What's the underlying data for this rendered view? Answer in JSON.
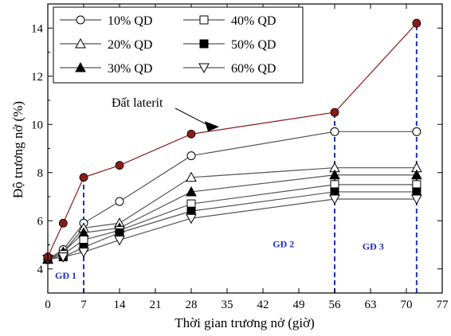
{
  "chart_data": {
    "type": "line",
    "xlabel": "Thời gian trương nở (giờ)",
    "ylabel": "Độ trương nở (%)",
    "xlim": [
      0,
      77
    ],
    "ylim": [
      3,
      15
    ],
    "x_ticks": [
      0,
      7,
      14,
      21,
      28,
      35,
      42,
      49,
      56,
      63,
      70,
      77
    ],
    "y_ticks": [
      4,
      6,
      8,
      10,
      12,
      14
    ],
    "legend_position": "top-left",
    "series": [
      {
        "name": "10% QD",
        "marker": "circle-open",
        "color": "#555555",
        "x": [
          0,
          3,
          7,
          14,
          28,
          56,
          72
        ],
        "y": [
          4.4,
          4.8,
          5.9,
          6.8,
          8.7,
          9.7,
          9.7
        ]
      },
      {
        "name": "20% QD",
        "marker": "triangle-up-open",
        "color": "#555555",
        "x": [
          0,
          3,
          7,
          14,
          28,
          56,
          72
        ],
        "y": [
          4.4,
          4.7,
          5.7,
          5.9,
          7.8,
          8.2,
          8.2
        ]
      },
      {
        "name": "30% QD",
        "marker": "triangle-up-filled",
        "color": "#555555",
        "x": [
          0,
          3,
          7,
          14,
          28,
          56,
          72
        ],
        "y": [
          4.4,
          4.7,
          5.5,
          5.7,
          7.2,
          7.9,
          7.9
        ]
      },
      {
        "name": "40% QD",
        "marker": "square-open",
        "color": "#555555",
        "x": [
          0,
          3,
          7,
          14,
          28,
          56,
          72
        ],
        "y": [
          4.4,
          4.6,
          5.2,
          5.6,
          6.7,
          7.5,
          7.5
        ]
      },
      {
        "name": "50% QD",
        "marker": "square-filled",
        "color": "#555555",
        "x": [
          0,
          3,
          7,
          14,
          28,
          56,
          72
        ],
        "y": [
          4.4,
          4.5,
          4.9,
          5.5,
          6.4,
          7.2,
          7.2
        ]
      },
      {
        "name": "60% QD",
        "marker": "triangle-down-open",
        "color": "#555555",
        "x": [
          0,
          3,
          7,
          14,
          28,
          56,
          72
        ],
        "y": [
          4.4,
          4.5,
          4.7,
          5.2,
          6.1,
          6.9,
          6.9
        ]
      },
      {
        "name": "Đất laterit",
        "marker": "circle-filled",
        "color": "#8b1a1a",
        "x": [
          0,
          3,
          7,
          14,
          28,
          56,
          72
        ],
        "y": [
          4.5,
          5.9,
          7.8,
          8.3,
          9.6,
          10.5,
          14.2
        ]
      }
    ],
    "phase_lines": [
      7,
      56,
      72
    ],
    "phase_labels": [
      {
        "text": "GĐ 1",
        "x": 3.5,
        "y": 3.6
      },
      {
        "text": "GĐ 2",
        "x": 46,
        "y": 4.9
      },
      {
        "text": "GĐ 3",
        "x": 63.5,
        "y": 4.8
      }
    ],
    "annotation": {
      "text": "Đất laterit",
      "target_x": 35,
      "target_y": 10.0
    },
    "colors": {
      "axis": "#000000",
      "series_line": "#555555",
      "laterit": "#8b1a1a",
      "phase": "#1f2fbf"
    }
  }
}
